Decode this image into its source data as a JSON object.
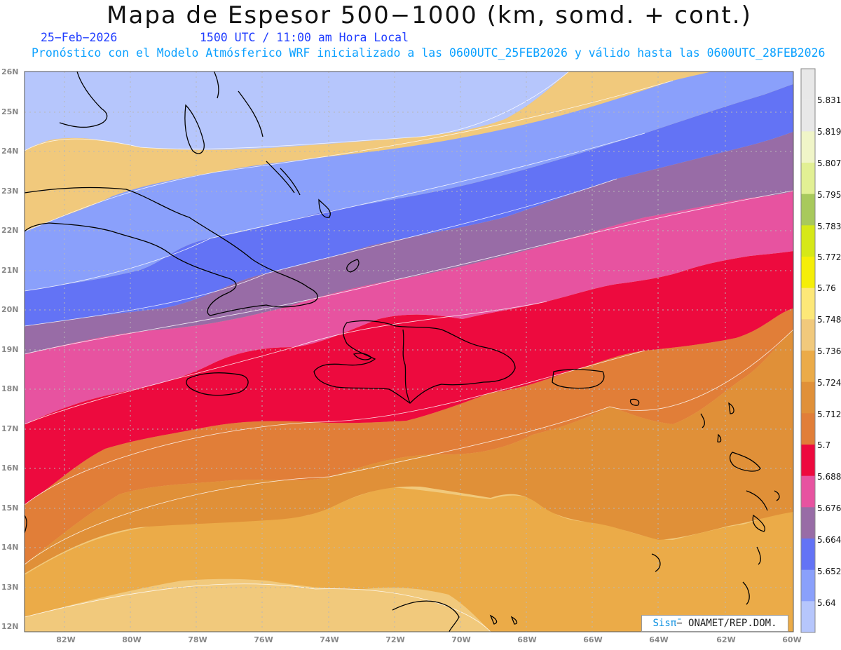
{
  "header": {
    "title": "Mapa de Espesor 500−1000 (km, somd. + cont.)",
    "date": "25−Feb−2026",
    "time": "1500 UTC / 11:00 am Hora Local",
    "description": "Pronóstico con el Modelo Atmósferico WRF inicializado a las 0600UTC_25FEB2026 y válido hasta las  0600UTC_28FEB2026"
  },
  "map": {
    "lat_labels": [
      "26N",
      "25N",
      "24N",
      "23N",
      "22N",
      "21N",
      "20N",
      "19N",
      "18N",
      "17N",
      "16N",
      "15N",
      "14N",
      "13N",
      "12N"
    ],
    "lon_labels": [
      "82W",
      "80W",
      "78W",
      "76W",
      "74W",
      "72W",
      "70W",
      "68W",
      "66W",
      "64W",
      "62W",
      "60W"
    ],
    "region": "Caribbean - Hispaniola, Cuba, Bahamas, Puerto Rico, Lesser Antilles"
  },
  "colorbar": {
    "labels": [
      "5.831",
      "5.819",
      "5.807",
      "5.795",
      "5.783",
      "5.772",
      "5.76",
      "5.748",
      "5.736",
      "5.724",
      "5.712",
      "5.7",
      "5.688",
      "5.676",
      "5.664",
      "5.652",
      "5.64"
    ],
    "colors": [
      "#e8e8e8",
      "#f0f5c8",
      "#e2f094",
      "#a8c95c",
      "#d6e818",
      "#f5ee08",
      "#fde878",
      "#f1c97c",
      "#ebab48",
      "#e09038",
      "#e17e38",
      "#ed0a3e",
      "#e753a0",
      "#986ca6",
      "#6373f5",
      "#8aa0fb",
      "#b6c6fc"
    ]
  },
  "credit": {
    "sis": "Sisπ̄",
    "org": "− ONAMET/REP.DOM."
  }
}
